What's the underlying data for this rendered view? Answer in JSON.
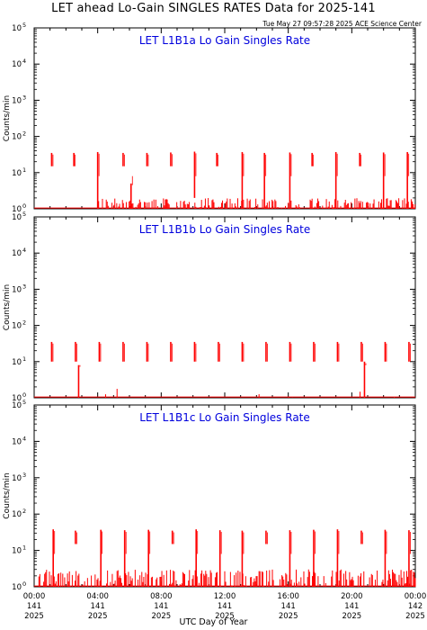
{
  "header": {
    "title": "LET ahead Lo-Gain SINGLES RATES Data for 2025-141",
    "timestamp": "Tue May 27 09:57:28 2025 ACE Science Center"
  },
  "colors": {
    "series": "#ff0000",
    "panel_title": "#0000dd",
    "axes": "#000000"
  },
  "chart_data": {
    "type": "line",
    "xlabel": "UTC Day of Year",
    "ylabel": "Counts/min",
    "yscale": "log",
    "ylim": [
      1,
      100000
    ],
    "grid": false,
    "x_ticks": [
      {
        "time": "00:00",
        "doy": "141",
        "year": "2025"
      },
      {
        "time": "04:00",
        "doy": "141",
        "year": "2025"
      },
      {
        "time": "08:00",
        "doy": "141",
        "year": "2025"
      },
      {
        "time": "12:00",
        "doy": "141",
        "year": "2025"
      },
      {
        "time": "16:00",
        "doy": "141",
        "year": "2025"
      },
      {
        "time": "20:00",
        "doy": "141",
        "year": "2025"
      },
      {
        "time": "00:00",
        "doy": "142",
        "year": "2025"
      }
    ],
    "y_ticks": [
      "10",
      "10",
      "10",
      "10",
      "10",
      "10"
    ],
    "y_tick_exponents": [
      "0",
      "1",
      "2",
      "3",
      "4",
      "5"
    ],
    "panels": [
      {
        "title": "LET L1B1a Lo Gain Singles Rate",
        "spikes": [
          {
            "hour": 1.1,
            "top": 35,
            "bottom": 15
          },
          {
            "hour": 2.5,
            "top": 35,
            "bottom": 15
          },
          {
            "hour": 4.0,
            "top": 37,
            "bottom": 1
          },
          {
            "hour": 5.6,
            "top": 35,
            "bottom": 15
          },
          {
            "hour": 6.1,
            "top": 5,
            "bottom": 1
          },
          {
            "hour": 7.1,
            "top": 35,
            "bottom": 15
          },
          {
            "hour": 8.6,
            "top": 36,
            "bottom": 15
          },
          {
            "hour": 10.1,
            "top": 38,
            "bottom": 2
          },
          {
            "hour": 11.5,
            "top": 35,
            "bottom": 15
          },
          {
            "hour": 13.1,
            "top": 37,
            "bottom": 1
          },
          {
            "hour": 14.5,
            "top": 35,
            "bottom": 1
          },
          {
            "hour": 16.1,
            "top": 36,
            "bottom": 1
          },
          {
            "hour": 17.5,
            "top": 35,
            "bottom": 15
          },
          {
            "hour": 19.0,
            "top": 37,
            "bottom": 1
          },
          {
            "hour": 20.5,
            "top": 35,
            "bottom": 15
          },
          {
            "hour": 22.0,
            "top": 36,
            "bottom": 1
          },
          {
            "hour": 23.5,
            "top": 37,
            "bottom": 1
          }
        ],
        "baseline": {
          "start_hour": 4,
          "end_hour": 24,
          "density": 0.5,
          "max": 2
        }
      },
      {
        "title": "LET L1B1b Lo Gain Singles Rate",
        "spikes": [
          {
            "hour": 1.1,
            "top": 35,
            "bottom": 10
          },
          {
            "hour": 2.6,
            "top": 35,
            "bottom": 10
          },
          {
            "hour": 2.8,
            "top": 8,
            "bottom": 1
          },
          {
            "hour": 4.1,
            "top": 35,
            "bottom": 10
          },
          {
            "hour": 5.6,
            "top": 35,
            "bottom": 10
          },
          {
            "hour": 7.1,
            "top": 35,
            "bottom": 10
          },
          {
            "hour": 8.6,
            "top": 35,
            "bottom": 10
          },
          {
            "hour": 10.1,
            "top": 35,
            "bottom": 10
          },
          {
            "hour": 11.6,
            "top": 35,
            "bottom": 10
          },
          {
            "hour": 13.1,
            "top": 35,
            "bottom": 10
          },
          {
            "hour": 14.6,
            "top": 35,
            "bottom": 10
          },
          {
            "hour": 16.1,
            "top": 35,
            "bottom": 10
          },
          {
            "hour": 17.6,
            "top": 35,
            "bottom": 10
          },
          {
            "hour": 19.1,
            "top": 35,
            "bottom": 10
          },
          {
            "hour": 20.6,
            "top": 35,
            "bottom": 10
          },
          {
            "hour": 20.8,
            "top": 10,
            "bottom": 1
          },
          {
            "hour": 22.1,
            "top": 35,
            "bottom": 10
          },
          {
            "hour": 23.6,
            "top": 35,
            "bottom": 10
          }
        ],
        "baseline": {
          "start_hour": 0,
          "end_hour": 24,
          "density": 0.02,
          "max": 1.8
        }
      },
      {
        "title": "LET L1B1c Lo Gain Singles Rate",
        "spikes": [
          {
            "hour": 1.2,
            "top": 38,
            "bottom": 1
          },
          {
            "hour": 2.6,
            "top": 35,
            "bottom": 15
          },
          {
            "hour": 4.2,
            "top": 37,
            "bottom": 1
          },
          {
            "hour": 5.7,
            "top": 36,
            "bottom": 1
          },
          {
            "hour": 7.2,
            "top": 37,
            "bottom": 1
          },
          {
            "hour": 8.7,
            "top": 35,
            "bottom": 15
          },
          {
            "hour": 10.2,
            "top": 38,
            "bottom": 1
          },
          {
            "hour": 11.7,
            "top": 36,
            "bottom": 1
          },
          {
            "hour": 13.1,
            "top": 35,
            "bottom": 1
          },
          {
            "hour": 14.6,
            "top": 35,
            "bottom": 15
          },
          {
            "hour": 16.1,
            "top": 36,
            "bottom": 1
          },
          {
            "hour": 17.6,
            "top": 37,
            "bottom": 1
          },
          {
            "hour": 19.1,
            "top": 38,
            "bottom": 1
          },
          {
            "hour": 20.6,
            "top": 35,
            "bottom": 15
          },
          {
            "hour": 22.1,
            "top": 37,
            "bottom": 1
          },
          {
            "hour": 23.6,
            "top": 36,
            "bottom": 1
          }
        ],
        "baseline": {
          "start_hour": 0,
          "end_hour": 24,
          "density": 0.55,
          "max": 3
        }
      }
    ]
  }
}
